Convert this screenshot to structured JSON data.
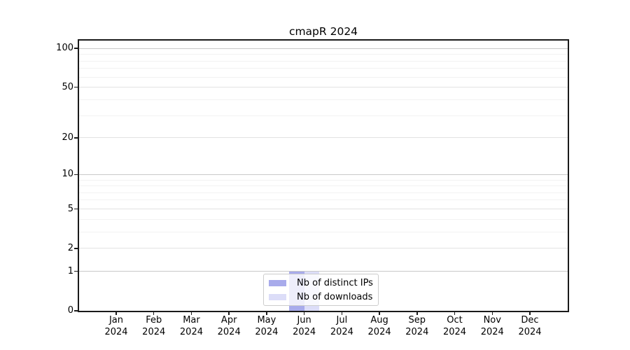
{
  "window": {
    "background": "#ffffff"
  },
  "chart_data": {
    "type": "bar",
    "title": "cmapR 2024",
    "categories": [
      "Jan 2024",
      "Feb 2024",
      "Mar 2024",
      "Apr 2024",
      "May 2024",
      "Jun 2024",
      "Jul 2024",
      "Aug 2024",
      "Sep 2024",
      "Oct 2024",
      "Nov 2024",
      "Dec 2024"
    ],
    "series": [
      {
        "name": "Nb of distinct IPs",
        "color": "#a8abeb",
        "values": [
          0,
          0,
          0,
          0,
          0,
          1,
          0,
          0,
          0,
          0,
          0,
          0
        ]
      },
      {
        "name": "Nb of downloads",
        "color": "#dcddf8",
        "values": [
          0,
          0,
          0,
          0,
          0,
          1,
          0,
          0,
          0,
          0,
          0,
          0
        ]
      }
    ],
    "xlabel": "",
    "ylabel": "",
    "yscale": "log1p",
    "ylim": [
      0,
      115
    ],
    "yticks": [
      {
        "value": 0,
        "label": "0"
      },
      {
        "value": 1,
        "label": "1"
      },
      {
        "value": 2,
        "label": "2"
      },
      {
        "value": 5,
        "label": "5"
      },
      {
        "value": 10,
        "label": "10"
      },
      {
        "value": 20,
        "label": "20"
      },
      {
        "value": 50,
        "label": "50"
      },
      {
        "value": 100,
        "label": "100"
      }
    ],
    "minor_yticks": [
      3,
      4,
      6,
      7,
      8,
      9,
      30,
      40,
      60,
      70,
      80,
      90
    ],
    "grid": "horizontal",
    "legend": {
      "position": "bottom-center",
      "frame": true
    }
  },
  "colors": {
    "spine": "#1a1a1a",
    "grid_decade": "#c8c8c8",
    "grid_labeled": "#e2e2e2",
    "grid_minor": "#f2f2f2",
    "text": "#000000",
    "legend_border": "#cccccc"
  }
}
